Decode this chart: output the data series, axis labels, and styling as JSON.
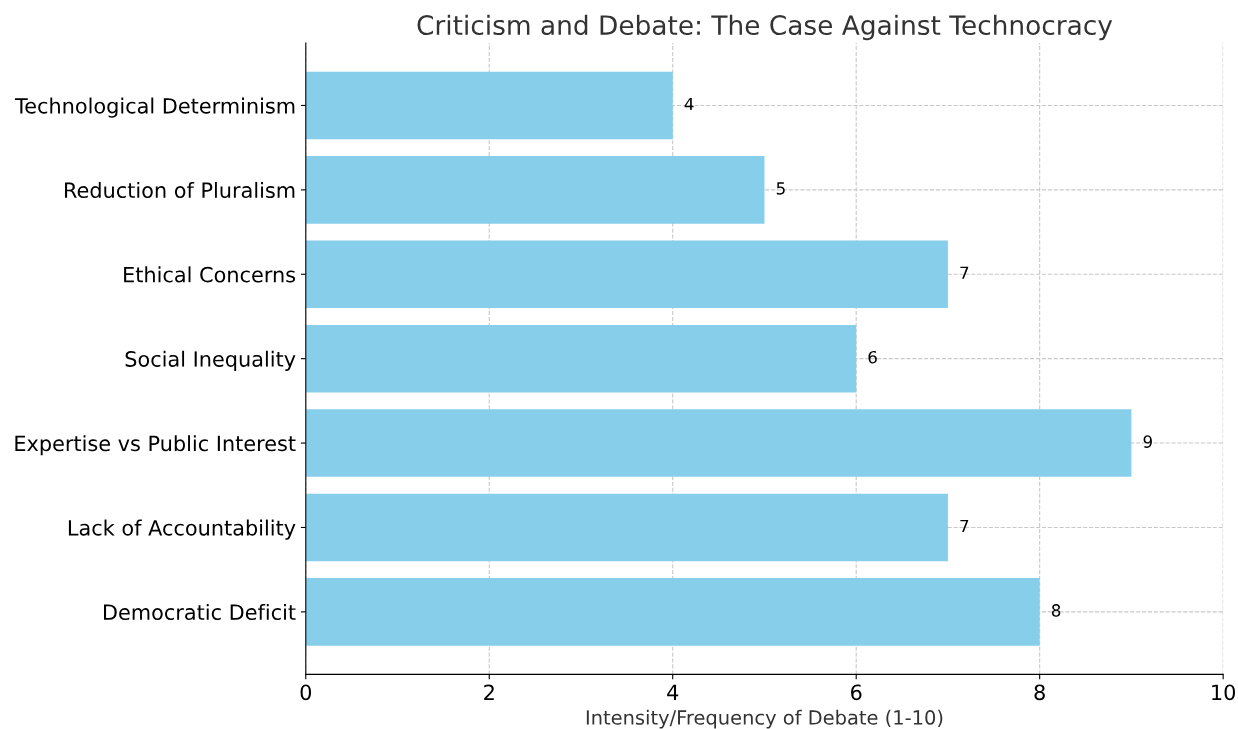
{
  "chart_data": {
    "type": "bar",
    "orientation": "horizontal",
    "title": "Criticism and Debate: The Case Against Technocracy",
    "xlabel": "Intensity/Frequency of Debate (1-10)",
    "categories": [
      "Technological Determinism",
      "Reduction of Pluralism",
      "Ethical Concerns",
      "Social Inequality",
      "Expertise vs Public Interest",
      "Lack of Accountability",
      "Democratic Deficit"
    ],
    "values": [
      4,
      5,
      7,
      6,
      9,
      7,
      8
    ],
    "color": "#87ceeb",
    "xlim": [
      0,
      10
    ],
    "xticks": [
      0,
      2,
      4,
      6,
      8,
      10
    ],
    "grid": true,
    "line_style": "dashed",
    "data_labels": true
  }
}
